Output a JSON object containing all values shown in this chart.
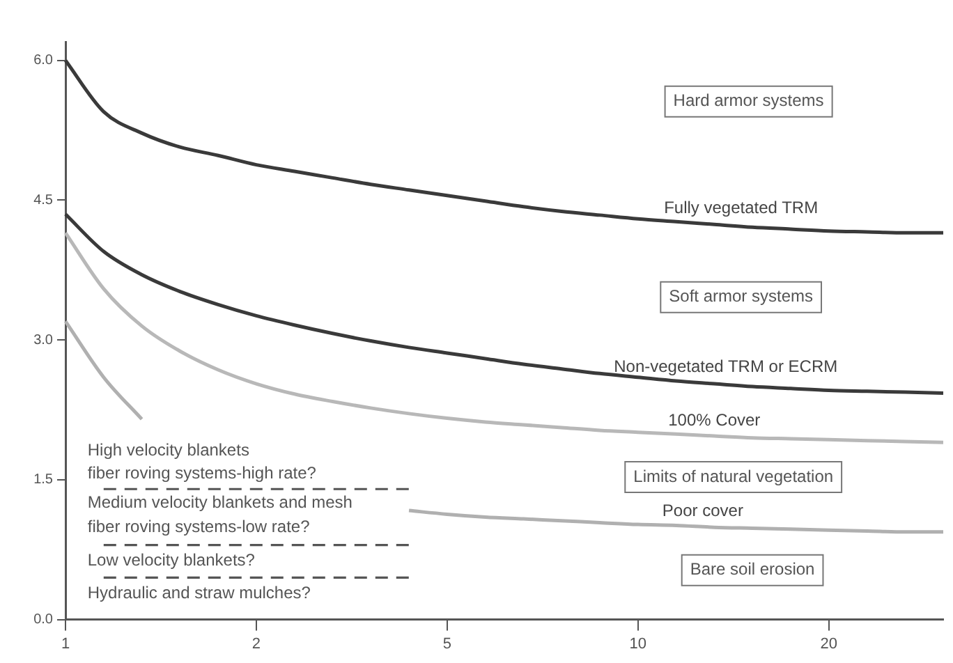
{
  "chart_data": {
    "type": "line",
    "marker": "none",
    "categories": [
      "1",
      null,
      null,
      null,
      null,
      "2",
      null,
      null,
      null,
      null,
      "5",
      null,
      null,
      null,
      null,
      "10",
      null,
      null,
      null,
      null,
      "20",
      null,
      null,
      null
    ],
    "series": [
      {
        "name": "Fully vegetated TRM",
        "color": "#3a3a3a",
        "values": [
          6.0,
          5.45,
          5.22,
          5.07,
          4.98,
          4.88,
          4.81,
          4.74,
          4.67,
          4.61,
          4.55,
          4.49,
          4.43,
          4.38,
          4.34,
          4.3,
          4.27,
          4.24,
          4.21,
          4.19,
          4.17,
          4.16,
          4.15,
          4.15
        ]
      },
      {
        "name": "Non-vegetated TRM or ECRM",
        "color": "#3a3a3a",
        "values": [
          4.35,
          3.95,
          3.7,
          3.52,
          3.38,
          3.26,
          3.16,
          3.07,
          2.99,
          2.92,
          2.86,
          2.8,
          2.74,
          2.69,
          2.64,
          2.6,
          2.56,
          2.53,
          2.5,
          2.48,
          2.46,
          2.45,
          2.44,
          2.43
        ]
      },
      {
        "name": "100% Cover",
        "color": "#b8b8b8",
        "values": [
          4.15,
          3.55,
          3.15,
          2.88,
          2.68,
          2.53,
          2.42,
          2.34,
          2.27,
          2.21,
          2.16,
          2.12,
          2.09,
          2.06,
          2.03,
          2.01,
          1.99,
          1.97,
          1.95,
          1.94,
          1.93,
          1.92,
          1.91,
          1.9
        ]
      },
      {
        "name": "Poor cover",
        "color": "#b0b0b0",
        "values": [
          3.2,
          2.6,
          2.15,
          null,
          null,
          null,
          null,
          null,
          null,
          1.17,
          1.13,
          1.1,
          1.08,
          1.06,
          1.04,
          1.02,
          1.01,
          0.99,
          0.98,
          0.97,
          0.96,
          0.95,
          0.94,
          0.94
        ]
      },
      {
        "color": "#555555",
        "line_style": "dashed",
        "values": [
          null,
          1.4,
          1.4,
          1.4,
          1.4,
          1.4,
          1.4,
          1.4,
          1.4,
          1.4,
          null,
          null,
          null,
          null,
          null,
          null,
          null,
          null,
          null,
          null,
          null,
          null,
          null,
          null
        ]
      },
      {
        "color": "#555555",
        "line_style": "dashed",
        "values": [
          null,
          0.8,
          0.8,
          0.8,
          0.8,
          0.8,
          0.8,
          0.8,
          0.8,
          0.8,
          null,
          null,
          null,
          null,
          null,
          null,
          null,
          null,
          null,
          null,
          null,
          null,
          null,
          null
        ]
      },
      {
        "color": "#555555",
        "line_style": "dashed",
        "values": [
          null,
          0.45,
          0.45,
          0.45,
          0.45,
          0.45,
          0.45,
          0.45,
          0.45,
          0.45,
          null,
          null,
          null,
          null,
          null,
          null,
          null,
          null,
          null,
          null,
          null,
          null,
          null,
          null
        ]
      }
    ],
    "ylim": [
      0,
      6.2
    ],
    "yticks": [
      {
        "value": 0,
        "label": "0.0"
      },
      {
        "value": 1.5,
        "label": "1.5"
      },
      {
        "value": 3,
        "label": "3.0"
      },
      {
        "value": 4.5,
        "label": "4.5"
      },
      {
        "value": 6,
        "label": "6.0"
      }
    ],
    "annotations": [
      "Hard armor systems",
      "Soft armor systems",
      "Limits of natural vegetation",
      "Bare soil erosion",
      "High velocity blankets",
      "fiber roving systems-high rate?",
      "Medium velocity blankets and mesh",
      "fiber roving systems-low rate?",
      "Low velocity blankets?",
      "Hydraulic and straw mulches?"
    ]
  }
}
